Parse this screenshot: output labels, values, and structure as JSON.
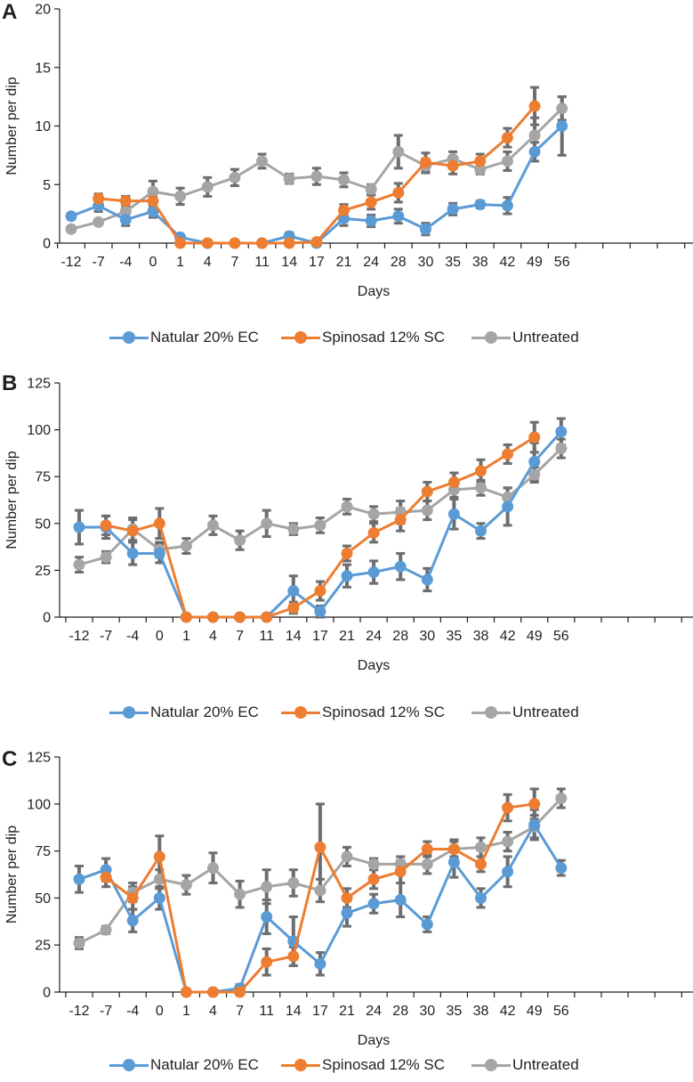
{
  "colors": {
    "natular": "#5b9bd5",
    "spinosad": "#ed7d31",
    "untreated": "#a5a5a5",
    "error_bar": "#6d6e71",
    "axis": "#231f20"
  },
  "legend": {
    "natular": "Natular 20% EC",
    "spinosad": "Spinosad 12% SC",
    "untreated": "Untreated"
  },
  "chart_data": [
    {
      "panel": "A",
      "type": "line",
      "xlabel": "Days",
      "ylabel": "Number per dip",
      "ylim": [
        0,
        20
      ],
      "yticks": [
        "0",
        "5",
        "10",
        "15",
        "20"
      ],
      "categories": [
        "-12",
        "-7",
        "-4",
        "0",
        "1",
        "4",
        "7",
        "11",
        "14",
        "17",
        "21",
        "24",
        "28",
        "30",
        "35",
        "38",
        "42",
        "49",
        "56"
      ],
      "series": [
        {
          "name": "Natular 20% EC",
          "values": [
            2.3,
            3.2,
            2.0,
            2.7,
            0.5,
            0.0,
            0.0,
            0.0,
            0.6,
            0.0,
            2.1,
            1.9,
            2.3,
            1.2,
            2.9,
            3.3,
            3.2,
            7.8,
            10.0
          ],
          "errors": [
            0,
            0.5,
            0.5,
            0.5,
            0,
            0,
            0,
            0,
            0.3,
            0,
            0.6,
            0.5,
            0.6,
            0.5,
            0.5,
            0.3,
            0.7,
            0.8,
            2.5
          ]
        },
        {
          "name": "Spinosad 12% SC",
          "values": [
            null,
            3.8,
            3.6,
            3.6,
            0.0,
            0.0,
            0.0,
            0.0,
            0.0,
            0.1,
            2.8,
            3.5,
            4.3,
            6.9,
            6.6,
            7.0,
            9.0,
            11.7,
            null
          ],
          "errors": [
            0,
            0.4,
            0.4,
            0.4,
            0,
            0,
            0,
            0,
            0,
            0.1,
            0.5,
            0.6,
            0.8,
            0.8,
            0.7,
            0.6,
            0.8,
            1.6,
            0
          ]
        },
        {
          "name": "Untreated",
          "values": [
            1.2,
            1.8,
            2.7,
            4.4,
            4.0,
            4.8,
            5.6,
            7.0,
            5.5,
            5.7,
            5.4,
            4.6,
            7.8,
            6.6,
            7.2,
            6.3,
            7.0,
            9.2,
            11.5
          ],
          "errors": [
            0.2,
            0.2,
            0.4,
            0.9,
            0.7,
            0.8,
            0.7,
            0.6,
            0.4,
            0.7,
            0.6,
            0.4,
            1.4,
            0.6,
            0.6,
            0.4,
            0.8,
            1.5,
            1.0
          ]
        }
      ]
    },
    {
      "panel": "B",
      "type": "line",
      "xlabel": "Days",
      "ylabel": "Number per dip",
      "ylim": [
        0,
        125
      ],
      "yticks": [
        "0",
        "25",
        "50",
        "75",
        "100",
        "125"
      ],
      "categories": [
        "-12",
        "-7",
        "-4",
        "0",
        "1",
        "4",
        "7",
        "11",
        "14",
        "17",
        "21",
        "24",
        "28",
        "30",
        "35",
        "38",
        "42",
        "49",
        "56"
      ],
      "series": [
        {
          "name": "Natular 20% EC",
          "values": [
            48,
            48,
            34,
            34,
            0,
            0,
            0,
            0,
            14,
            3,
            22,
            24,
            27,
            20,
            55,
            46,
            59,
            83,
            99
          ],
          "errors": [
            9,
            6,
            6,
            5,
            0,
            0,
            0,
            0,
            8,
            3,
            6,
            6,
            7,
            6,
            8,
            4,
            10,
            10,
            7
          ]
        },
        {
          "name": "Spinosad 12% SC",
          "values": [
            null,
            49,
            46,
            50,
            0,
            0,
            0,
            0,
            5,
            14,
            34,
            45,
            52,
            67,
            72,
            78,
            87,
            96,
            null
          ],
          "errors": [
            0,
            5,
            6,
            8,
            0,
            0,
            0,
            0,
            3,
            5,
            4,
            5,
            6,
            5,
            5,
            6,
            5,
            8,
            0
          ]
        },
        {
          "name": "Untreated",
          "values": [
            28,
            32,
            47,
            36,
            38,
            49,
            41,
            50,
            47,
            49,
            59,
            55,
            56,
            57,
            68,
            69,
            64,
            76,
            90
          ],
          "errors": [
            4,
            3,
            6,
            4,
            4,
            5,
            5,
            7,
            3,
            4,
            4,
            4,
            6,
            5,
            4,
            4,
            5,
            4,
            5
          ]
        }
      ]
    },
    {
      "panel": "C",
      "type": "line",
      "xlabel": "Days",
      "ylabel": "Number per dip",
      "ylim": [
        0,
        125
      ],
      "yticks": [
        "0",
        "25",
        "50",
        "75",
        "100",
        "125"
      ],
      "categories": [
        "-12",
        "-7",
        "-4",
        "0",
        "1",
        "4",
        "7",
        "11",
        "14",
        "17",
        "21",
        "24",
        "28",
        "30",
        "35",
        "38",
        "42",
        "49",
        "56"
      ],
      "series": [
        {
          "name": "Natular 20% EC",
          "values": [
            60,
            65,
            38,
            50,
            0,
            0,
            2,
            40,
            27,
            15,
            42,
            47,
            49,
            36,
            69,
            50,
            64,
            89,
            66
          ],
          "errors": [
            7,
            6,
            6,
            6,
            0,
            0,
            2,
            9,
            13,
            6,
            7,
            5,
            9,
            4,
            8,
            5,
            8,
            8,
            4
          ]
        },
        {
          "name": "Spinosad 12% SC",
          "values": [
            null,
            61,
            50,
            72,
            0,
            0,
            0,
            16,
            19,
            77,
            50,
            60,
            64,
            76,
            76,
            68,
            98,
            100,
            null
          ],
          "errors": [
            0,
            5,
            6,
            11,
            0,
            0,
            0,
            7,
            5,
            23,
            5,
            5,
            6,
            4,
            5,
            4,
            7,
            8,
            0
          ]
        },
        {
          "name": "Untreated",
          "values": [
            26,
            33,
            53,
            60,
            57,
            66,
            52,
            56,
            58,
            54,
            72,
            68,
            68,
            68,
            76,
            77,
            80,
            88,
            103
          ],
          "errors": [
            3,
            2,
            5,
            5,
            5,
            8,
            7,
            9,
            7,
            6,
            5,
            3,
            4,
            5,
            4,
            5,
            5,
            6,
            5
          ]
        }
      ]
    }
  ]
}
